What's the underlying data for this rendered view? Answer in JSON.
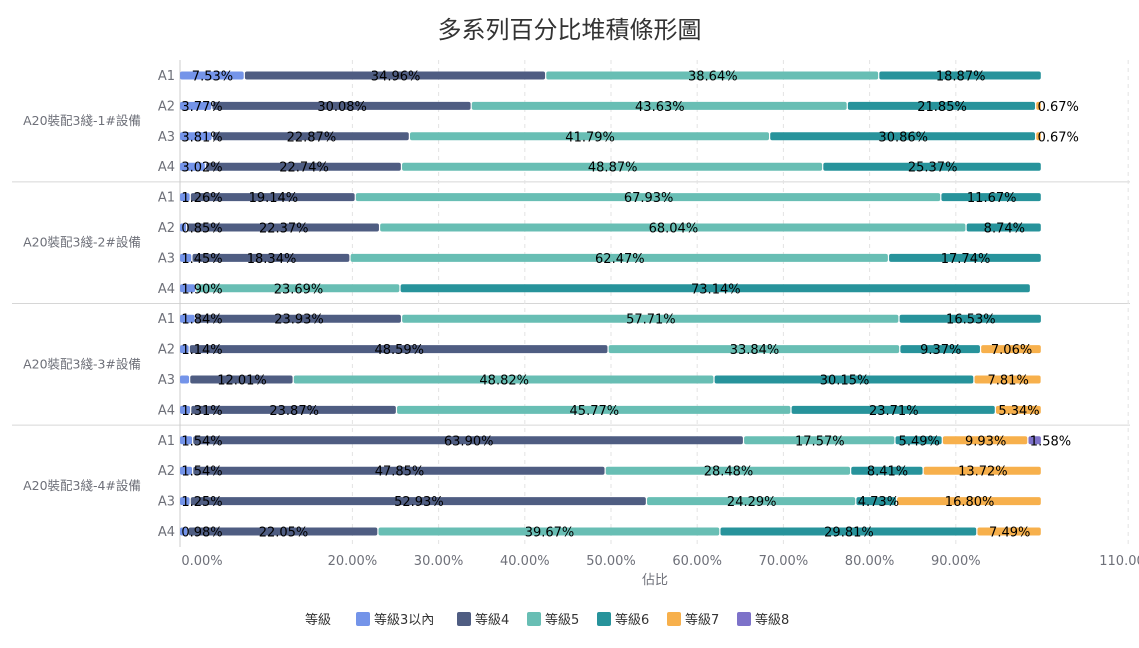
{
  "chart_data": {
    "type": "bar",
    "orientation": "horizontal",
    "stacked": true,
    "title": "多系列百分比堆積條形圖",
    "xlabel": "佔比",
    "legend_title": "等級",
    "legend_position": "bottom",
    "xlim": [
      0,
      110
    ],
    "x_ticks": [
      "0.00%",
      "20.00%",
      "30.00%",
      "40.00%",
      "50.00%",
      "60.00%",
      "70.00%",
      "80.00%",
      "90.00%",
      "110.00%"
    ],
    "grid": true,
    "groups": [
      "A20裝配3綫-1#設備",
      "A20裝配3綫-2#設備",
      "A20裝配3綫-3#設備",
      "A20裝配3綫-4#設備"
    ],
    "categories": [
      "A1",
      "A2",
      "A3",
      "A4"
    ],
    "series": [
      {
        "name": "等級3以內",
        "color": "#7494e9",
        "values": [
          [
            7.53,
            3.77,
            3.81,
            3.02
          ],
          [
            1.26,
            0.85,
            1.45,
            1.9
          ],
          [
            1.84,
            1.14,
            1.19,
            1.31
          ],
          [
            1.54,
            1.54,
            1.25,
            0.98
          ]
        ],
        "labels": [
          [
            "7.53%",
            "3.77%",
            "3.81%",
            "3.02%"
          ],
          [
            "1.26%",
            "0.85%",
            "1.45%",
            "1.90%"
          ],
          [
            "1.84%",
            "1.14%",
            "",
            "1.31%"
          ],
          [
            "1.54%",
            "1.54%",
            "1.25%",
            "0.98%"
          ]
        ]
      },
      {
        "name": "等級4",
        "color": "#4f5d82",
        "values": [
          [
            34.96,
            30.08,
            22.87,
            22.74
          ],
          [
            19.14,
            22.37,
            18.34,
            0.0
          ],
          [
            23.93,
            48.59,
            12.01,
            23.87
          ],
          [
            63.9,
            47.85,
            52.93,
            22.05
          ]
        ],
        "labels": [
          [
            "34.96%",
            "30.08%",
            "22.87%",
            "22.74%"
          ],
          [
            "19.14%",
            "22.37%",
            "18.34%",
            ""
          ],
          [
            "23.93%",
            "48.59%",
            "12.01%",
            "23.87%"
          ],
          [
            "63.90%",
            "47.85%",
            "52.93%",
            "22.05%"
          ]
        ]
      },
      {
        "name": "等級5",
        "color": "#68beb4",
        "values": [
          [
            38.64,
            43.63,
            41.79,
            48.87
          ],
          [
            67.93,
            68.04,
            62.47,
            23.69
          ],
          [
            57.71,
            33.84,
            48.82,
            45.77
          ],
          [
            17.57,
            28.48,
            24.29,
            39.67
          ]
        ],
        "labels": [
          [
            "38.64%",
            "43.63%",
            "41.79%",
            "48.87%"
          ],
          [
            "67.93%",
            "68.04%",
            "62.47%",
            "23.69%"
          ],
          [
            "57.71%",
            "33.84%",
            "48.82%",
            "45.77%"
          ],
          [
            "17.57%",
            "28.48%",
            "24.29%",
            "39.67%"
          ]
        ]
      },
      {
        "name": "等級6",
        "color": "#27939b",
        "values": [
          [
            18.87,
            21.85,
            30.86,
            25.37
          ],
          [
            11.67,
            8.74,
            17.74,
            73.14
          ],
          [
            16.53,
            9.37,
            30.15,
            23.71
          ],
          [
            5.49,
            8.41,
            4.73,
            29.81
          ]
        ],
        "labels": [
          [
            "18.87%",
            "21.85%",
            "30.86%",
            "25.37%"
          ],
          [
            "11.67%",
            "8.74%",
            "17.74%",
            "73.14%"
          ],
          [
            "16.53%",
            "9.37%",
            "30.15%",
            "23.71%"
          ],
          [
            "5.49%",
            "8.41%",
            "4.73%",
            "29.81%"
          ]
        ]
      },
      {
        "name": "等級7",
        "color": "#f7b04c",
        "values": [
          [
            0,
            0.67,
            0.67,
            0
          ],
          [
            0,
            0,
            0,
            0
          ],
          [
            0,
            7.06,
            7.81,
            5.34
          ],
          [
            9.93,
            13.72,
            16.8,
            7.49
          ]
        ],
        "labels": [
          [
            "",
            "0.67%",
            "0.67%",
            ""
          ],
          [
            "",
            "",
            "",
            ""
          ],
          [
            "",
            "7.06%",
            "7.81%",
            "5.34%"
          ],
          [
            "9.93%",
            "13.72%",
            "16.80%",
            "7.49%"
          ]
        ]
      },
      {
        "name": "等級8",
        "color": "#7d72c9",
        "values": [
          [
            0,
            0,
            0,
            0
          ],
          [
            0,
            0,
            0,
            0
          ],
          [
            0,
            0,
            0,
            0
          ],
          [
            1.58,
            0,
            0,
            0
          ]
        ],
        "labels": [
          [
            "",
            "",
            "",
            ""
          ],
          [
            "",
            "",
            "",
            ""
          ],
          [
            "",
            "",
            "",
            ""
          ],
          [
            "1.58%",
            "",
            "",
            ""
          ]
        ]
      }
    ]
  }
}
